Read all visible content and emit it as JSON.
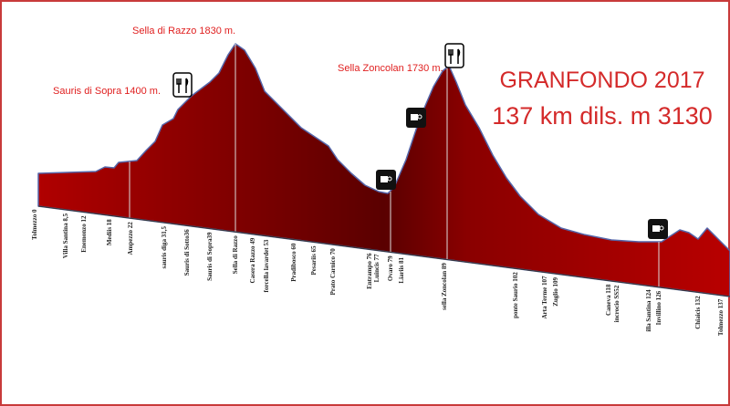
{
  "header": {
    "title": "GRANFONDO 2017",
    "subtitle": "137 km  dils. m 3130"
  },
  "peaks": [
    "Sella di Razzo 1830 m.",
    "Sauris di Sopra 1400 m.",
    "Sella Zoncolan 1730 m."
  ],
  "locations": [
    "Tolmezzo 0",
    "Villa Santina 8,5",
    "Enemonzo 12",
    "Mediis 18",
    "Ampezzo 22",
    "sauris diga 31,5",
    "Sauris di Sotto36",
    "Sauris di Sopra39",
    "Sella di Razzo",
    "Casera Razzo 49",
    "forcella lavardet 53",
    "Pradibosco 60",
    "Pesariis 65",
    "Prato Carnico 70",
    "Entrampo 76",
    "Luincis 77",
    "Ovaro 79",
    "Liariis 81",
    "sella Zoncolan 89",
    "ponte Saurio 102",
    "Arta Terme 107",
    "Zuglio 109",
    "Caneva 118",
    "incrocio SS52",
    "illa Santina 124",
    "Invillino 126",
    "Chiaicis 132",
    "Tolmezzo 137"
  ]
}
